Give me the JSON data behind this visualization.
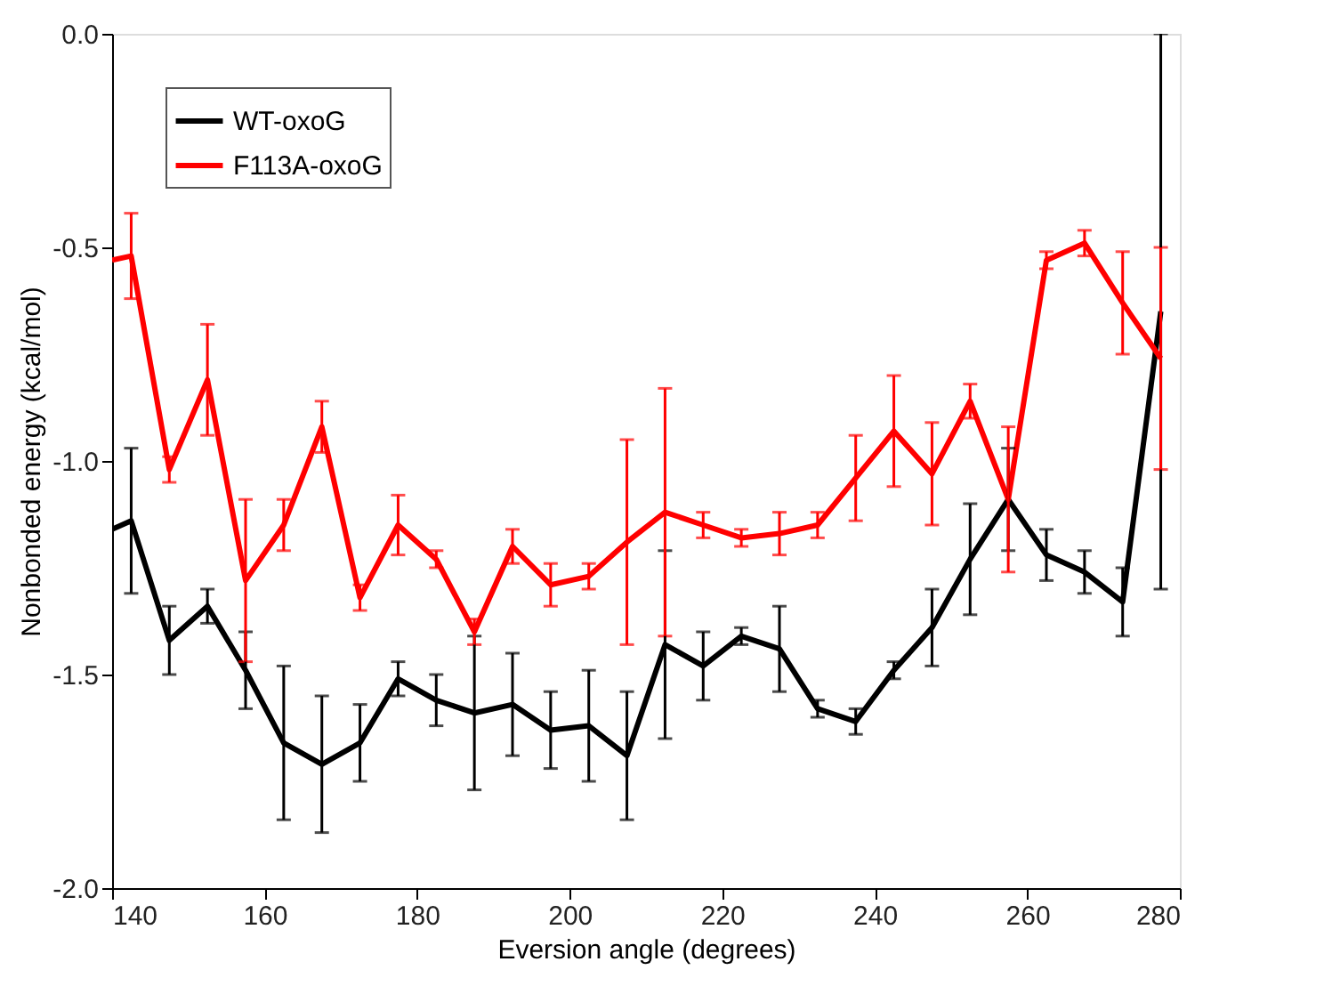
{
  "chart_data": {
    "type": "line",
    "xlabel": "Eversion angle (degrees)",
    "ylabel": "Nonbonded energy (kcal/mol)",
    "x": [
      140,
      142.5,
      147.5,
      152.5,
      157.5,
      162.5,
      167.5,
      172.5,
      177.5,
      182.5,
      187.5,
      192.5,
      197.5,
      202.5,
      207.5,
      212.5,
      217.5,
      222.5,
      227.5,
      232.5,
      237.5,
      242.5,
      247.5,
      252.5,
      257.5,
      262.5,
      267.5,
      272.5,
      277.5
    ],
    "series": [
      {
        "name": "WT-oxoG",
        "color": "#000000",
        "values": [
          -1.16,
          -1.14,
          -1.42,
          -1.34,
          -1.49,
          -1.66,
          -1.71,
          -1.66,
          -1.51,
          -1.56,
          -1.59,
          -1.57,
          -1.63,
          -1.62,
          -1.69,
          -1.43,
          -1.48,
          -1.41,
          -1.44,
          -1.58,
          -1.61,
          -1.49,
          -1.39,
          -1.23,
          -1.09,
          -1.22,
          -1.26,
          -1.33,
          -0.65
        ],
        "errors": [
          null,
          0.17,
          0.08,
          0.04,
          0.09,
          0.18,
          0.16,
          0.09,
          0.04,
          0.06,
          0.18,
          0.12,
          0.09,
          0.13,
          0.15,
          0.22,
          0.08,
          0.02,
          0.1,
          0.02,
          0.03,
          0.02,
          0.09,
          0.13,
          0.12,
          0.06,
          0.05,
          0.08,
          0.65
        ]
      },
      {
        "name": "F113A-oxoG",
        "color": "#ff0000",
        "values": [
          -0.53,
          -0.52,
          -1.02,
          -0.81,
          -1.28,
          -1.15,
          -0.92,
          -1.32,
          -1.15,
          -1.23,
          -1.4,
          -1.2,
          -1.29,
          -1.27,
          -1.19,
          -1.12,
          -1.15,
          -1.18,
          -1.17,
          -1.15,
          -1.04,
          -0.93,
          -1.03,
          -0.86,
          -1.09,
          -0.53,
          -0.49,
          -0.63,
          -0.76
        ],
        "errors": [
          null,
          0.1,
          0.03,
          0.13,
          0.19,
          0.06,
          0.06,
          0.03,
          0.07,
          0.02,
          0.03,
          0.04,
          0.05,
          0.03,
          0.24,
          0.29,
          0.03,
          0.02,
          0.05,
          0.03,
          0.1,
          0.13,
          0.12,
          0.04,
          0.17,
          0.02,
          0.03,
          0.12,
          0.26
        ]
      }
    ],
    "xlim": [
      140,
      280
    ],
    "xticks": [
      140,
      160,
      180,
      200,
      220,
      240,
      260,
      280
    ],
    "ylim": [
      -2.0,
      0.0
    ],
    "yticks": [
      {
        "value": -2.0,
        "label": "-2.0"
      },
      {
        "value": -1.5,
        "label": "-1.5"
      },
      {
        "value": -1.0,
        "label": "-1.0"
      },
      {
        "value": -0.5,
        "label": "-0.5"
      },
      {
        "value": 0.0,
        "label": "0.0"
      }
    ],
    "legend": "top left",
    "grid": false,
    "marker": "none",
    "line_style": "solid"
  }
}
